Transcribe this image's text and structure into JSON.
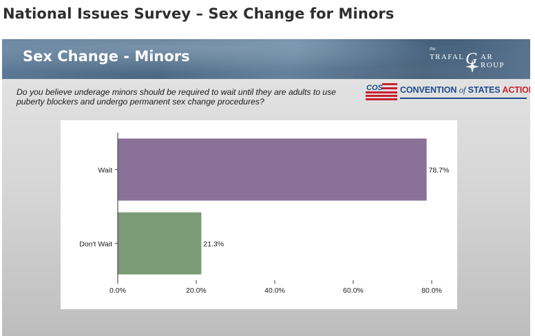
{
  "page_title": "National Issues Survey – Sex Change for Minors",
  "slide": {
    "title": "Sex Change - Minors",
    "question": "Do you believe underage minors should be required to wait until they are adults to use puberty blockers and undergo permanent sex change procedures?",
    "logo_trafalgar": {
      "small": "the",
      "line1": "TRAFAL",
      "big_letter": "G",
      "line1_end": "AR",
      "line2": "ROUP"
    },
    "logo_cos": {
      "badge": "COS",
      "text_a": "CONVENTION ",
      "text_of": "of",
      "text_b": " STATES ",
      "text_c": "ACTION"
    }
  },
  "colors": {
    "wait": "#8a7199",
    "dont_wait": "#7a9b76",
    "cos_blue": "#1b4a8c",
    "cos_red": "#c8202f"
  },
  "chart_data": {
    "type": "bar",
    "orientation": "horizontal",
    "categories": [
      "Wait",
      "Don't Wait"
    ],
    "values": [
      78.7,
      21.3
    ],
    "value_labels": [
      "78.7%",
      "21.3%"
    ],
    "xlim": [
      0,
      80
    ],
    "xticks": [
      0,
      20,
      40,
      60,
      80
    ],
    "xtick_labels": [
      "0.0%",
      "20.0%",
      "40.0%",
      "60.0%",
      "80.0%"
    ],
    "grid": false,
    "legend": "none"
  }
}
